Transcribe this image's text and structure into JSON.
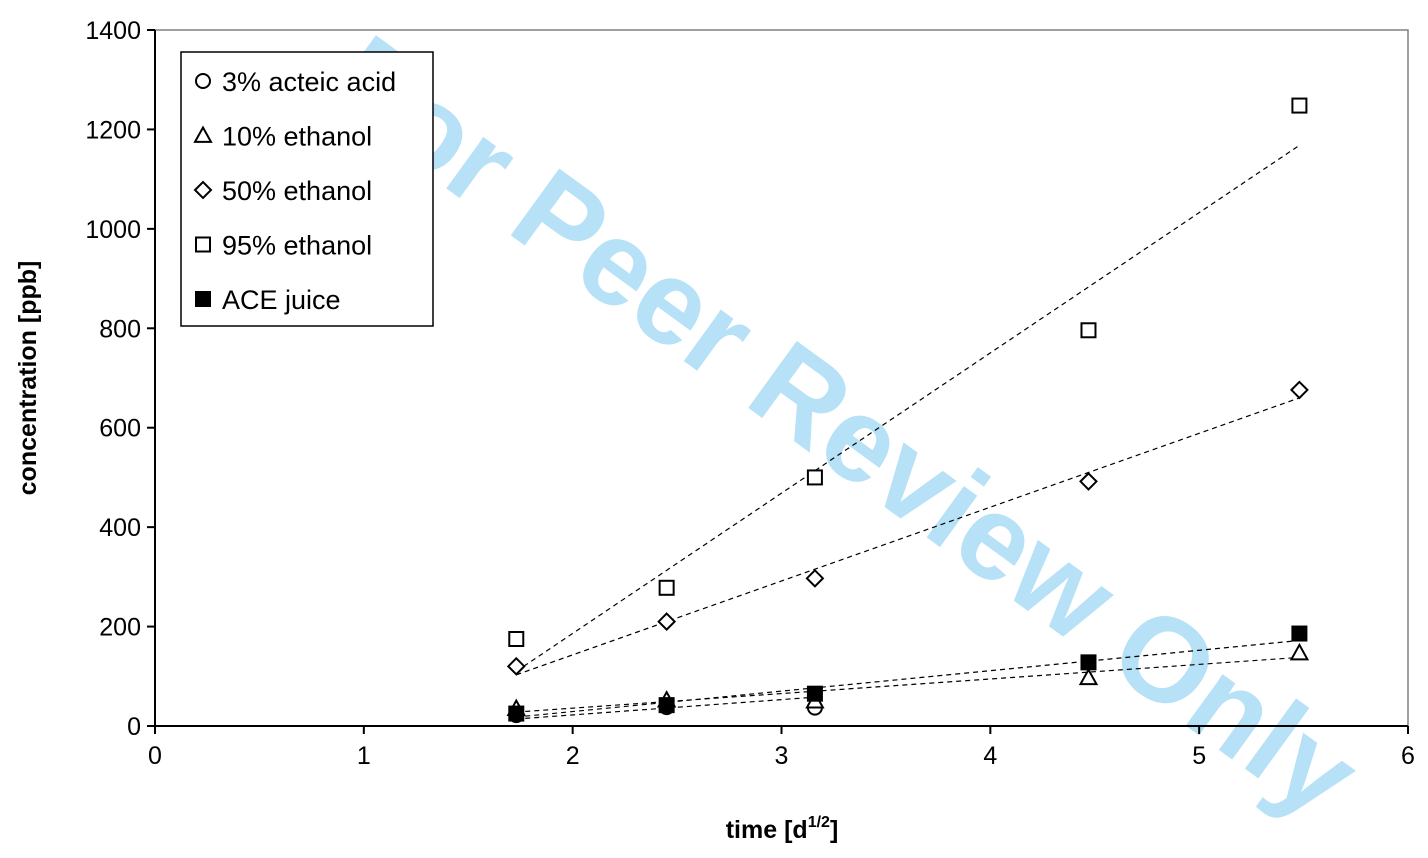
{
  "watermark": "For Peer Review Only",
  "chart_data": {
    "type": "scatter",
    "title": "",
    "xlabel_main": "time [d",
    "xlabel_sup": "1/2",
    "xlabel_end": "]",
    "ylabel": "concentration [ppb]",
    "xlim": [
      0,
      6
    ],
    "ylim": [
      0,
      1400
    ],
    "x_ticks": [
      0,
      1,
      2,
      3,
      4,
      5,
      6
    ],
    "y_ticks": [
      0,
      200,
      400,
      600,
      800,
      1000,
      1200,
      1400
    ],
    "grid": false,
    "legend_position": "top-left",
    "series": [
      {
        "name": "3% acteic acid",
        "marker": "circle",
        "filled": false,
        "x": [
          1.73,
          2.45,
          3.16
        ],
        "y": [
          22,
          38,
          37
        ],
        "trend": [
          [
            1.73,
            14
          ],
          [
            3.16,
            58
          ]
        ]
      },
      {
        "name": "10% ethanol",
        "marker": "triangle",
        "filled": false,
        "x": [
          1.73,
          2.45,
          3.16,
          4.47,
          5.48
        ],
        "y": [
          35,
          52,
          50,
          97,
          147
        ],
        "trend": [
          [
            1.73,
            28
          ],
          [
            5.48,
            138
          ]
        ]
      },
      {
        "name": "50% ethanol",
        "marker": "diamond",
        "filled": false,
        "x": [
          1.73,
          2.45,
          3.16,
          4.47,
          5.48
        ],
        "y": [
          120,
          210,
          297,
          492,
          676
        ],
        "trend": [
          [
            1.73,
            103
          ],
          [
            5.48,
            660
          ]
        ]
      },
      {
        "name": "95% ethanol",
        "marker": "square",
        "filled": false,
        "x": [
          1.73,
          2.45,
          3.16,
          4.47,
          5.48
        ],
        "y": [
          175,
          278,
          500,
          796,
          1248
        ],
        "trend": [
          [
            1.73,
            110
          ],
          [
            5.48,
            1168
          ]
        ]
      },
      {
        "name": "ACE juice",
        "marker": "square",
        "filled": true,
        "x": [
          1.73,
          2.45,
          3.16,
          4.47,
          5.48
        ],
        "y": [
          25,
          42,
          65,
          128,
          186
        ],
        "trend": [
          [
            1.73,
            18
          ],
          [
            5.48,
            172
          ]
        ]
      }
    ]
  }
}
